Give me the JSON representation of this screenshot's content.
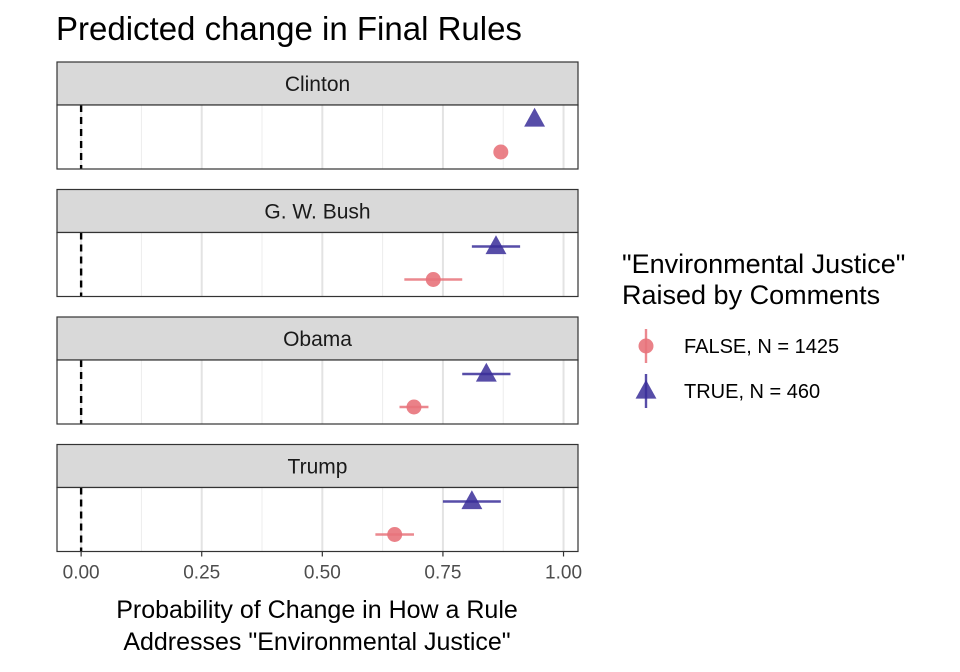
{
  "chart_data": {
    "type": "scatter",
    "title": "Predicted change in Final Rules",
    "xlabel": [
      "Probability of Change in How a Rule",
      "Addresses \"Environmental Justice\""
    ],
    "xlim": [
      -0.05,
      1.03
    ],
    "xticks": [
      0,
      0.25,
      0.5,
      0.75,
      1
    ],
    "xtick_labels": [
      "0.00",
      "0.25",
      "0.50",
      "0.75",
      "1.00"
    ],
    "reference_line": 0,
    "grid": true,
    "facets": [
      "Clinton",
      "G. W. Bush",
      "Obama",
      "Trump"
    ],
    "legend": {
      "title": [
        "\"Environmental Justice\"",
        "Raised by Comments"
      ],
      "position": "right"
    },
    "series": [
      {
        "name": "FALSE, N = 1425",
        "shape": "circle",
        "color": "#e8737b",
        "points": [
          {
            "facet": "Clinton",
            "estimate": 0.87,
            "lower": 0.87,
            "upper": 0.87
          },
          {
            "facet": "G. W. Bush",
            "estimate": 0.73,
            "lower": 0.67,
            "upper": 0.79
          },
          {
            "facet": "Obama",
            "estimate": 0.69,
            "lower": 0.66,
            "upper": 0.72
          },
          {
            "facet": "Trump",
            "estimate": 0.65,
            "lower": 0.61,
            "upper": 0.69
          }
        ]
      },
      {
        "name": "TRUE, N = 460",
        "shape": "triangle",
        "color": "#3a2e99",
        "points": [
          {
            "facet": "Clinton",
            "estimate": 0.94,
            "lower": 0.94,
            "upper": 0.94
          },
          {
            "facet": "G. W. Bush",
            "estimate": 0.86,
            "lower": 0.81,
            "upper": 0.91
          },
          {
            "facet": "Obama",
            "estimate": 0.84,
            "lower": 0.79,
            "upper": 0.89
          },
          {
            "facet": "Trump",
            "estimate": 0.81,
            "lower": 0.75,
            "upper": 0.87
          }
        ]
      }
    ]
  }
}
